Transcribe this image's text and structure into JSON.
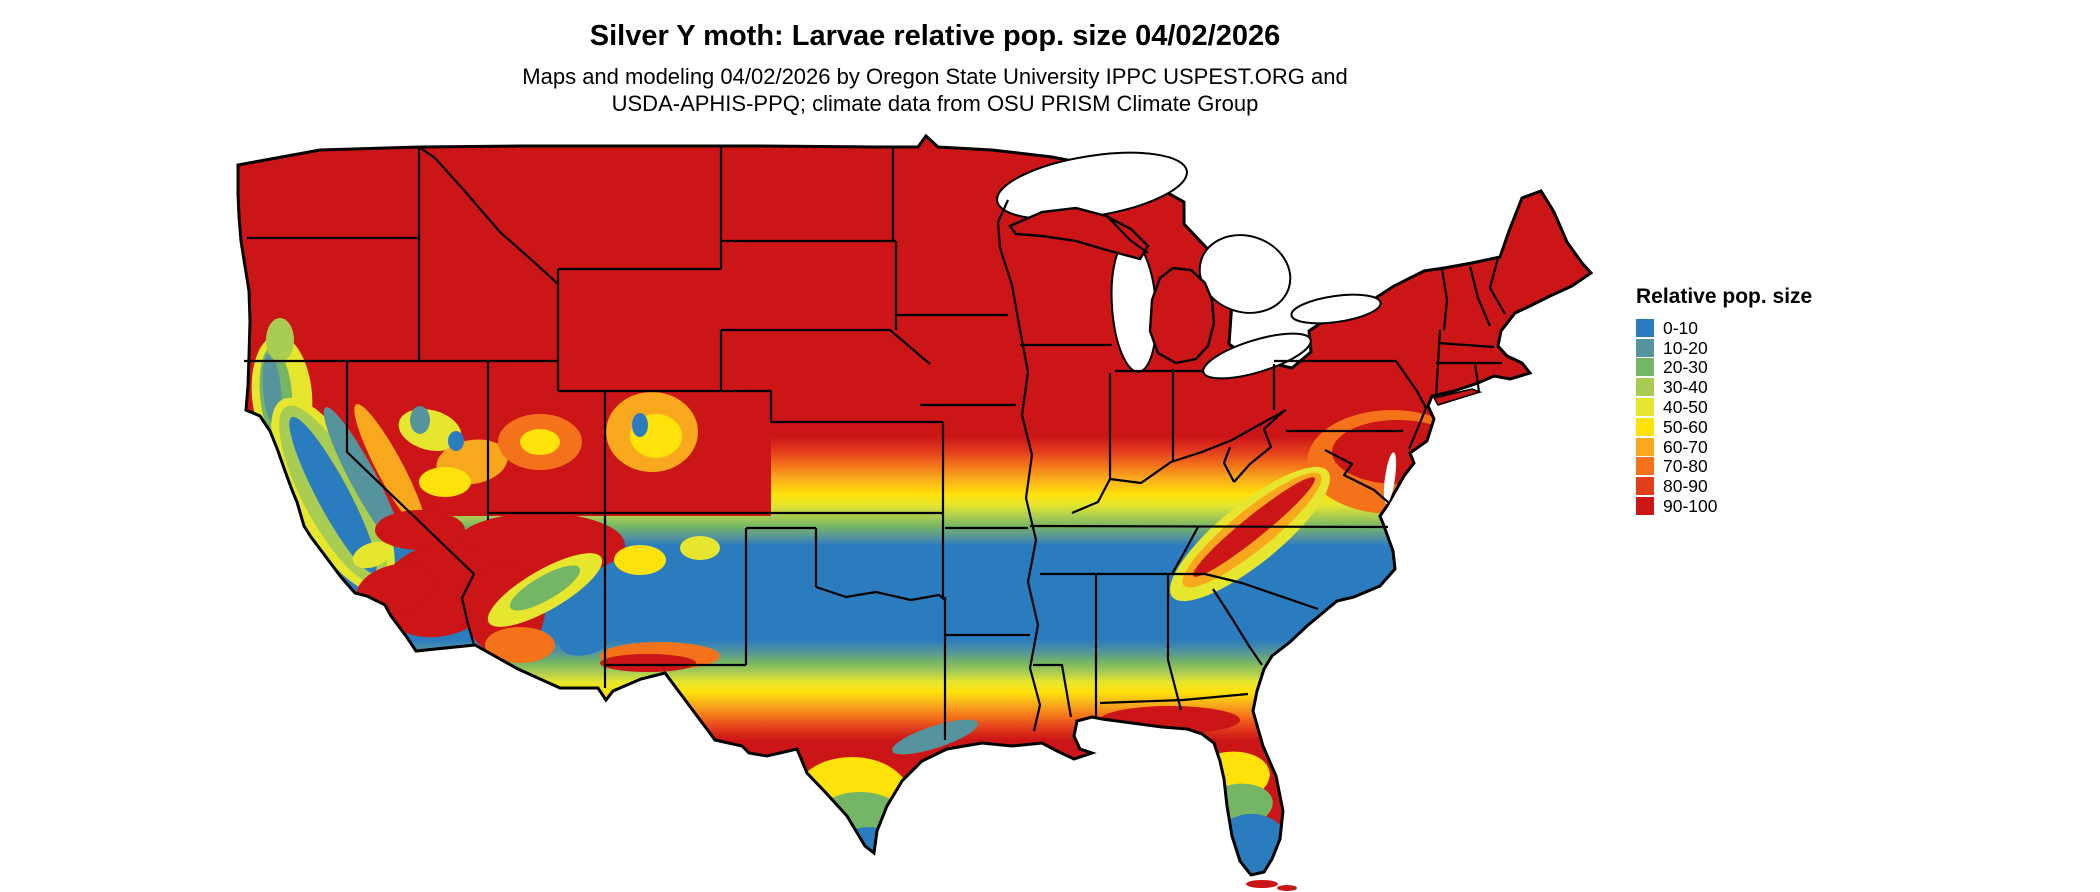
{
  "title": "Silver Y moth: Larvae relative pop. size 04/02/2026",
  "subtitle": {
    "line1": "Maps and modeling 04/02/2026 by Oregon State University IPPC USPEST.ORG and",
    "line2": "USDA-APHIS-PPQ; climate data from OSU PRISM Climate Group"
  },
  "legend": {
    "title": "Relative pop. size",
    "entries": [
      {
        "label": "0-10",
        "color": "#2B7CBE"
      },
      {
        "label": "10-20",
        "color": "#55949C"
      },
      {
        "label": "20-30",
        "color": "#74B566"
      },
      {
        "label": "30-40",
        "color": "#A9CC52"
      },
      {
        "label": "40-50",
        "color": "#E6E62E"
      },
      {
        "label": "50-60",
        "color": "#FFE20A"
      },
      {
        "label": "60-70",
        "color": "#F8A81C"
      },
      {
        "label": "70-80",
        "color": "#F4731A"
      },
      {
        "label": "80-90",
        "color": "#E33E1C"
      },
      {
        "label": "90-100",
        "color": "#CC1517"
      }
    ]
  },
  "map": {
    "region": "Contiguous United States"
  }
}
